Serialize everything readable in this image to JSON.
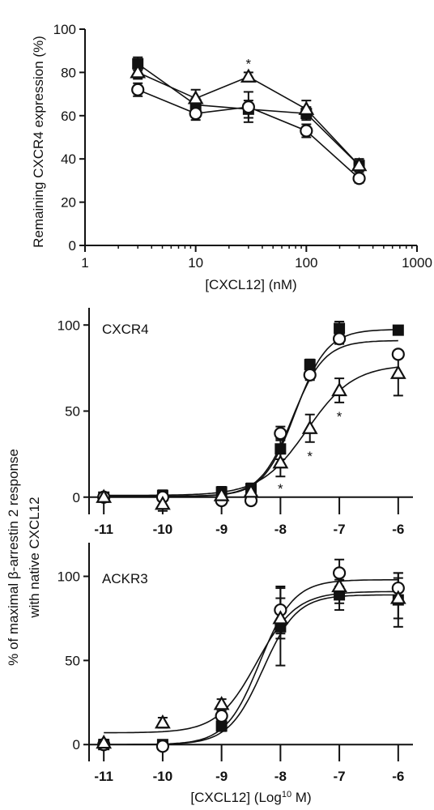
{
  "chart_data": [
    {
      "id": "A",
      "type": "line",
      "xscale": "log",
      "xlim": [
        1,
        1000
      ],
      "ylim": [
        0,
        100
      ],
      "xticks": [
        "1",
        "10",
        "100",
        "1000"
      ],
      "yticks": [
        "0",
        "20",
        "40",
        "60",
        "80",
        "100"
      ],
      "xlabel": "[CXCL12] (nM)",
      "ylabel": "Remaining CXCR4 expression (%)",
      "x": [
        3,
        10,
        30,
        100,
        300
      ],
      "series": [
        {
          "marker": "square-filled",
          "values": [
            84,
            65,
            63,
            61,
            37
          ],
          "err": [
            3,
            3,
            4,
            3,
            3
          ]
        },
        {
          "marker": "triangle-open",
          "values": [
            80,
            68,
            78,
            63,
            37
          ],
          "err": [
            3,
            4,
            2,
            4,
            2
          ]
        },
        {
          "marker": "circle-open",
          "values": [
            72,
            61,
            64,
            53,
            31
          ],
          "err": [
            3,
            3,
            7,
            3,
            2
          ]
        }
      ],
      "annotations": [
        {
          "text": "*",
          "x": 30,
          "y": 84
        }
      ]
    },
    {
      "id": "B",
      "type": "scatter",
      "subtitle": "CXCR4",
      "xlim": [
        -11.25,
        -5.75
      ],
      "ylim": [
        -10,
        110
      ],
      "xticks": [
        "-11",
        "-10",
        "-9",
        "-8",
        "-7",
        "-6"
      ],
      "yticks": [
        "0",
        "50",
        "100"
      ],
      "x": [
        -11,
        -10,
        -9,
        -8.5,
        -8,
        -7.5,
        -7,
        -6
      ],
      "series": [
        {
          "marker": "square-filled",
          "values": [
            0,
            1,
            3,
            5,
            28,
            77,
            98,
            97
          ],
          "err": [
            2,
            3,
            3,
            3,
            6,
            3,
            4,
            2
          ],
          "fit": [
            0.5,
            97.5,
            -7.75,
            1.6
          ]
        },
        {
          "marker": "circle-open",
          "values": [
            0,
            0,
            -2,
            -2,
            37,
            71,
            92,
            83
          ],
          "err": [
            2,
            2,
            2,
            2,
            4,
            3,
            3,
            2
          ],
          "fit": [
            0.5,
            91,
            -7.8,
            1.6
          ]
        },
        {
          "marker": "triangle-open",
          "values": [
            0,
            -4,
            1,
            3,
            20,
            40,
            62,
            72
          ],
          "err": [
            2,
            4,
            3,
            3,
            8,
            8,
            7,
            13
          ],
          "fit": [
            1,
            77,
            -7.55,
            1.1
          ]
        }
      ],
      "annotations": [
        {
          "text": "*",
          "x": -8,
          "y": 5
        },
        {
          "text": "*",
          "x": -7.5,
          "y": 24
        },
        {
          "text": "*",
          "x": -7,
          "y": 47
        }
      ]
    },
    {
      "id": "C",
      "type": "scatter",
      "subtitle": "ACKR3",
      "xlim": [
        -11.25,
        -5.75
      ],
      "ylim": [
        -10,
        120
      ],
      "xticks": [
        "-11",
        "-10",
        "-9",
        "-8",
        "-7",
        "-6"
      ],
      "yticks": [
        "0",
        "50",
        "100"
      ],
      "xlabel": "[CXCL12] (Log10 M)",
      "x": [
        -11,
        -10,
        -9,
        -8,
        -7,
        -6
      ],
      "series": [
        {
          "marker": "square-filled",
          "values": [
            0,
            0,
            11,
            70,
            89,
            86
          ],
          "err": [
            2,
            2,
            3,
            23,
            9,
            16
          ],
          "fit": [
            0,
            89,
            -8.3,
            1.5
          ]
        },
        {
          "marker": "circle-open",
          "values": [
            0,
            -1,
            17,
            80,
            102,
            93
          ],
          "err": [
            2,
            2,
            3,
            14,
            8,
            9
          ],
          "fit": [
            0,
            98,
            -8.35,
            1.5
          ]
        },
        {
          "marker": "triangle-open",
          "values": [
            1,
            13,
            24,
            75,
            94,
            87
          ],
          "err": [
            2,
            3,
            3,
            12,
            10,
            12
          ],
          "fit": [
            7,
            91,
            -8.4,
            1.3
          ]
        }
      ]
    }
  ],
  "shared_ylabel_line1": "% of maximal β-arrestin 2 response",
  "shared_ylabel_line2": "with  native CXCL12"
}
